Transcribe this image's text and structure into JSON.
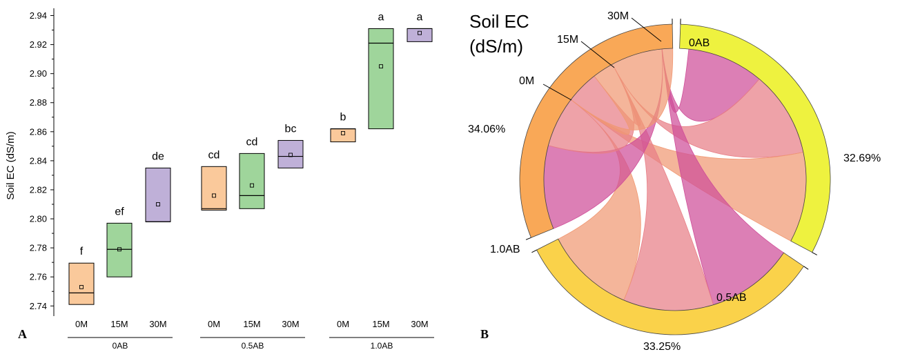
{
  "chart_data": [
    {
      "type": "box",
      "panel_letter": "A",
      "ylabel": "Soil EC (dS/m)",
      "ylim": [
        2.733,
        2.945
      ],
      "yticks": [
        2.74,
        2.76,
        2.78,
        2.8,
        2.82,
        2.84,
        2.86,
        2.88,
        2.9,
        2.92,
        2.94
      ],
      "ytick_labels": [
        "2.74",
        "2.76",
        "2.78",
        "2.80",
        "2.82",
        "2.84",
        "2.86",
        "2.88",
        "2.90",
        "2.92",
        "2.94"
      ],
      "groups": [
        "0AB",
        "0.5AB",
        "1.0AB"
      ],
      "categories": [
        "0M",
        "15M",
        "30M"
      ],
      "category_colors": {
        "0M": "#fac99b",
        "15M": "#9fd59b",
        "30M": "#bfb0d8"
      },
      "boxes": [
        {
          "group": "0AB",
          "category": "0M",
          "q1": 2.741,
          "median": 2.749,
          "q3": 2.7695,
          "mean": 2.753,
          "letter": "f"
        },
        {
          "group": "0AB",
          "category": "15M",
          "q1": 2.76,
          "median": 2.779,
          "q3": 2.797,
          "mean": 2.779,
          "letter": "ef"
        },
        {
          "group": "0AB",
          "category": "30M",
          "q1": 2.798,
          "median": 2.798,
          "q3": 2.835,
          "mean": 2.81,
          "letter": "de"
        },
        {
          "group": "0.5AB",
          "category": "0M",
          "q1": 2.806,
          "median": 2.807,
          "q3": 2.836,
          "mean": 2.816,
          "letter": "cd"
        },
        {
          "group": "0.5AB",
          "category": "15M",
          "q1": 2.807,
          "median": 2.816,
          "q3": 2.845,
          "mean": 2.823,
          "letter": "cd"
        },
        {
          "group": "0.5AB",
          "category": "30M",
          "q1": 2.835,
          "median": 2.843,
          "q3": 2.854,
          "mean": 2.844,
          "letter": "bc"
        },
        {
          "group": "1.0AB",
          "category": "0M",
          "q1": 2.853,
          "median": 2.862,
          "q3": 2.862,
          "mean": 2.859,
          "letter": "b"
        },
        {
          "group": "1.0AB",
          "category": "15M",
          "q1": 2.862,
          "median": 2.921,
          "q3": 2.931,
          "mean": 2.905,
          "letter": "a"
        },
        {
          "group": "1.0AB",
          "category": "30M",
          "q1": 2.922,
          "median": 2.931,
          "q3": 2.931,
          "mean": 2.928,
          "letter": "a"
        }
      ]
    },
    {
      "type": "chord",
      "panel_letter": "B",
      "title_line1": "Soil EC",
      "title_line2": "(dS/m)",
      "target_nodes": [
        {
          "name": "0AB",
          "percent": "32.69%",
          "color": "#eef23f"
        },
        {
          "name": "0.5AB",
          "percent": "33.25%",
          "color": "#fad24a"
        },
        {
          "name": "1.0AB",
          "percent": "34.06%",
          "color": "#f9a857"
        }
      ],
      "source_nodes": [
        {
          "name": "0M",
          "color": "#f09873"
        },
        {
          "name": "15M",
          "color": "#e87e86"
        },
        {
          "name": "30M",
          "color": "#cf4e98"
        }
      ],
      "links": [
        {
          "source": "30M",
          "target": "0AB"
        },
        {
          "source": "15M",
          "target": "0AB"
        },
        {
          "source": "0M",
          "target": "0AB"
        },
        {
          "source": "30M",
          "target": "0.5AB"
        },
        {
          "source": "15M",
          "target": "0.5AB"
        },
        {
          "source": "0M",
          "target": "0.5AB"
        },
        {
          "source": "30M",
          "target": "1.0AB"
        },
        {
          "source": "15M",
          "target": "1.0AB"
        },
        {
          "source": "0M",
          "target": "1.0AB"
        }
      ]
    }
  ]
}
